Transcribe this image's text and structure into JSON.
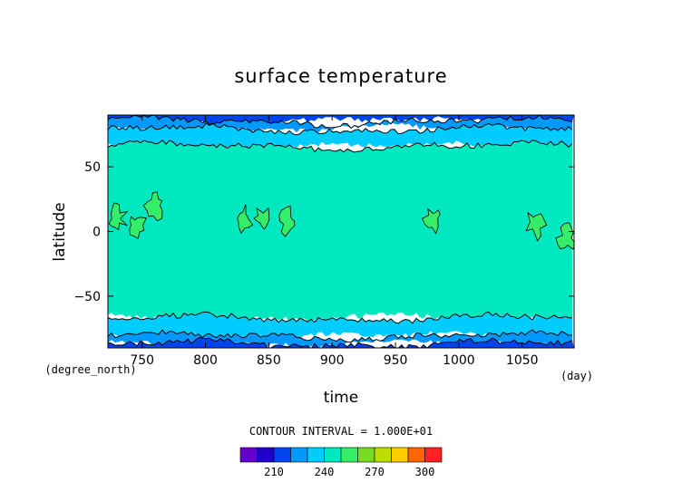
{
  "chart_data": {
    "type": "heatmap",
    "title": "surface temperature",
    "xlabel": "time",
    "ylabel": "latitude",
    "x_unit": "(day)",
    "y_unit": "(degree_north)",
    "xlim": [
      723,
      1091
    ],
    "ylim": [
      -90,
      90
    ],
    "x_ticks": [
      750,
      800,
      850,
      900,
      950,
      1000,
      1050
    ],
    "y_ticks": [
      -50,
      0,
      50
    ],
    "contour_interval_label": "CONTOUR INTERVAL = 1.000E+01",
    "contour_levels": [
      200,
      210,
      220,
      230,
      240,
      250,
      260,
      270,
      280,
      290,
      300
    ],
    "colorbar": {
      "boundaries": [
        190,
        200,
        210,
        220,
        230,
        240,
        250,
        260,
        270,
        280,
        290,
        300,
        310
      ],
      "tick_labels": [
        210,
        240,
        270,
        300
      ],
      "colors": [
        "#6600cc",
        "#2200cc",
        "#0044ee",
        "#0099ff",
        "#00ccff",
        "#00e8c0",
        "#33ee66",
        "#77dd22",
        "#bbdd00",
        "#ffcc00",
        "#ff6600",
        "#ff2222",
        "#ff9999"
      ]
    },
    "zonal_bands": [
      {
        "lat_min": 85,
        "lat_max": 90,
        "value": 215
      },
      {
        "lat_min": 79,
        "lat_max": 85,
        "value": 225
      },
      {
        "lat_min": 66,
        "lat_max": 79,
        "value": 235
      },
      {
        "lat_min": -67,
        "lat_max": 66,
        "value": 245
      },
      {
        "lat_min": -81,
        "lat_max": -67,
        "value": 235
      },
      {
        "lat_min": -87,
        "lat_max": -81,
        "value": 225
      },
      {
        "lat_min": -90,
        "lat_max": -87,
        "value": 215
      }
    ],
    "warm_patches": [
      {
        "day": 730,
        "lat": 10,
        "value": 255
      },
      {
        "day": 745,
        "lat": 5,
        "value": 255
      },
      {
        "day": 760,
        "lat": 20,
        "value": 255
      },
      {
        "day": 830,
        "lat": 10,
        "value": 255
      },
      {
        "day": 845,
        "lat": 10,
        "value": 255
      },
      {
        "day": 865,
        "lat": 8,
        "value": 255
      },
      {
        "day": 980,
        "lat": 10,
        "value": 255
      },
      {
        "day": 1060,
        "lat": 5,
        "value": 255
      },
      {
        "day": 1085,
        "lat": -5,
        "value": 255
      }
    ]
  },
  "colors": {
    "background": "#ffffff",
    "contour_line": "#000000",
    "axis": "#000000"
  }
}
